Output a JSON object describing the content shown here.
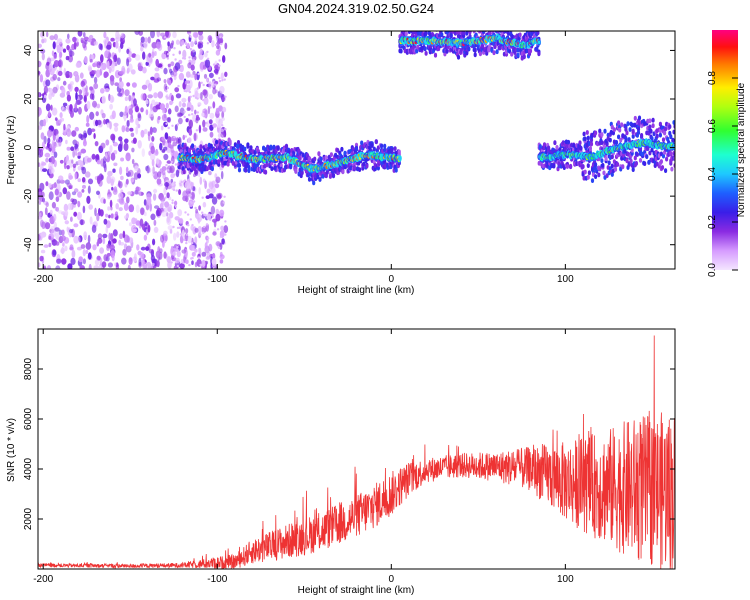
{
  "chart_data": [
    {
      "type": "heatmap",
      "title": "GN04.2024.319.02.50.G24",
      "xlabel": "Height of straight line (km)",
      "ylabel": "Frequency (Hz)",
      "xlim": [
        -203,
        163
      ],
      "ylim": [
        -50,
        48
      ],
      "xticks": [
        -200,
        -100,
        0,
        100
      ],
      "yticks": [
        -40,
        -20,
        0,
        20,
        40
      ],
      "colorbar": {
        "label": "Normalized spectral amplitude",
        "range": [
          0.0,
          1.0
        ],
        "ticks": [
          0.0,
          0.2,
          0.4,
          0.6,
          0.8
        ]
      },
      "tracks": [
        {
          "name": "scattered noise",
          "x_range": [
            -203,
            -95
          ],
          "freq_range": [
            -50,
            48
          ],
          "amplitude": 0.1
        },
        {
          "name": "main track",
          "x": [
            -122,
            -110,
            -95,
            -80,
            -60,
            -45,
            -30,
            -15,
            0,
            5
          ],
          "freq": [
            -4,
            -5,
            -2,
            -5,
            -4,
            -9,
            -6,
            -3,
            -4,
            -5
          ],
          "amplitude_peak": 0.95
        },
        {
          "name": "upper track",
          "x": [
            5,
            20,
            40,
            60,
            75,
            85
          ],
          "freq": [
            44,
            44,
            43,
            45,
            42,
            44
          ],
          "amplitude_peak": 0.98
        },
        {
          "name": "right track",
          "x": [
            85,
            100,
            115,
            130,
            145,
            163
          ],
          "freq": [
            -4,
            -3,
            -4,
            0,
            2,
            0
          ],
          "amplitude_peak": 0.7
        }
      ]
    },
    {
      "type": "line",
      "xlabel": "Height of straight line (km)",
      "ylabel": "SNR (10 * v/v)",
      "xlim": [
        -203,
        163
      ],
      "ylim": [
        0,
        9600
      ],
      "xticks": [
        -200,
        -100,
        0,
        100
      ],
      "yticks": [
        2000,
        4000,
        6000,
        8000
      ],
      "series": [
        {
          "name": "SNR",
          "color": "#ee3333",
          "x": [
            -203,
            -150,
            -120,
            -100,
            -90,
            -80,
            -60,
            -40,
            -20,
            -10,
            0,
            10,
            20,
            40,
            60,
            80,
            100,
            120,
            140,
            163
          ],
          "mean": [
            150,
            120,
            150,
            250,
            280,
            700,
            1100,
            1500,
            2100,
            2500,
            3000,
            3600,
            3950,
            4150,
            4100,
            4000,
            3500,
            3300,
            3200,
            3100
          ],
          "spread": [
            80,
            80,
            100,
            250,
            300,
            500,
            700,
            800,
            900,
            900,
            900,
            700,
            500,
            500,
            600,
            900,
            1600,
            2200,
            2900,
            3300
          ]
        }
      ]
    }
  ]
}
